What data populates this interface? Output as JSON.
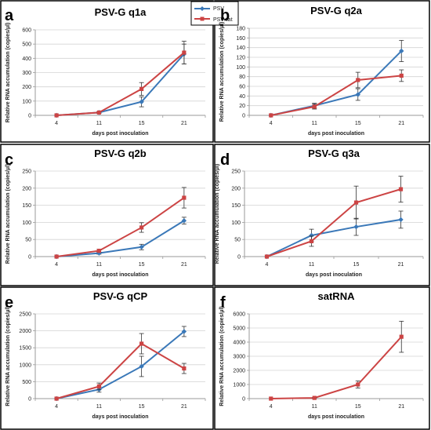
{
  "colors": {
    "psv": "#3a78b8",
    "psvsat": "#cc4444",
    "grid": "#d4d4d4",
    "axis": "#9a9a9a",
    "frame": "#000000"
  },
  "legend": {
    "psv": "PSV",
    "psvsat": "PSV.sat"
  },
  "chart_data": [
    {
      "letter": "a",
      "type": "line",
      "title": "PSV-G q1a",
      "xlabel": "days post inoculation",
      "ylabel": "Relative RNA accumulation  (copies/µl)",
      "categories": [
        "4",
        "11",
        "15",
        "21"
      ],
      "ylim": [
        0,
        600
      ],
      "ystep": 100,
      "grid": true,
      "series": [
        {
          "key": "psv",
          "values": [
            0,
            20,
            95,
            430
          ],
          "err": [
            0,
            5,
            35,
            70
          ]
        },
        {
          "key": "psvsat",
          "values": [
            0,
            20,
            185,
            440
          ],
          "err": [
            0,
            5,
            45,
            80
          ]
        }
      ]
    },
    {
      "letter": "b",
      "type": "line",
      "title": "PSV-G q2a",
      "xlabel": "days post inoculation",
      "ylabel": "Relative RNA accumulation  (copies/µl)",
      "categories": [
        "4",
        "11",
        "15",
        "21"
      ],
      "ylim": [
        0,
        180
      ],
      "ystep": 20,
      "grid": true,
      "series": [
        {
          "key": "psv",
          "values": [
            0,
            20,
            43,
            133
          ],
          "err": [
            0,
            5,
            12,
            22
          ]
        },
        {
          "key": "psvsat",
          "values": [
            0,
            18,
            73,
            82
          ],
          "err": [
            0,
            5,
            16,
            12
          ]
        }
      ]
    },
    {
      "letter": "c",
      "type": "line",
      "title": "PSV-G q2b",
      "xlabel": "days post inoculation",
      "ylabel": "Relative RNA accumulation  (copies/µl)",
      "categories": [
        "4",
        "11",
        "15",
        "21"
      ],
      "ylim": [
        0,
        250
      ],
      "ystep": 50,
      "grid": true,
      "series": [
        {
          "key": "psv",
          "values": [
            0,
            10,
            28,
            105
          ],
          "err": [
            0,
            3,
            8,
            10
          ]
        },
        {
          "key": "psvsat",
          "values": [
            0,
            17,
            85,
            172
          ],
          "err": [
            0,
            4,
            14,
            30
          ]
        }
      ]
    },
    {
      "letter": "d",
      "type": "line",
      "title": "PSV-G q3a",
      "xlabel": "days post inoculation",
      "ylabel": "Relative RNA accumulation  (copies/µl)",
      "categories": [
        "4",
        "11",
        "15",
        "21"
      ],
      "ylim": [
        0,
        250
      ],
      "ystep": 50,
      "grid": true,
      "series": [
        {
          "key": "psv",
          "values": [
            0,
            62,
            87,
            108
          ],
          "err": [
            0,
            18,
            25,
            25
          ]
        },
        {
          "key": "psvsat",
          "values": [
            0,
            45,
            158,
            197
          ],
          "err": [
            0,
            15,
            48,
            38
          ]
        }
      ]
    },
    {
      "letter": "e",
      "type": "line",
      "title": "PSV-G qCP",
      "xlabel": "days post inoculation",
      "ylabel": "Relative RNA accumulation  (copies/µl)",
      "categories": [
        "4",
        "11",
        "15",
        "21"
      ],
      "ylim": [
        0,
        2500
      ],
      "ystep": 500,
      "grid": true,
      "series": [
        {
          "key": "psv",
          "values": [
            0,
            270,
            950,
            1980
          ],
          "err": [
            0,
            80,
            300,
            150
          ]
        },
        {
          "key": "psvsat",
          "values": [
            0,
            360,
            1620,
            890
          ],
          "err": [
            0,
            100,
            300,
            150
          ]
        }
      ]
    },
    {
      "letter": "f",
      "type": "line",
      "title": "satRNA",
      "xlabel": "days post inoculation",
      "ylabel": "Relative RNA accumulation  (copies/µl)",
      "categories": [
        "4",
        "11",
        "15",
        "21"
      ],
      "ylim": [
        0,
        6000
      ],
      "ystep": 1000,
      "grid": true,
      "series": [
        {
          "key": "psvsat",
          "values": [
            0,
            50,
            1000,
            4380
          ],
          "err": [
            0,
            20,
            250,
            1100
          ]
        }
      ]
    }
  ]
}
